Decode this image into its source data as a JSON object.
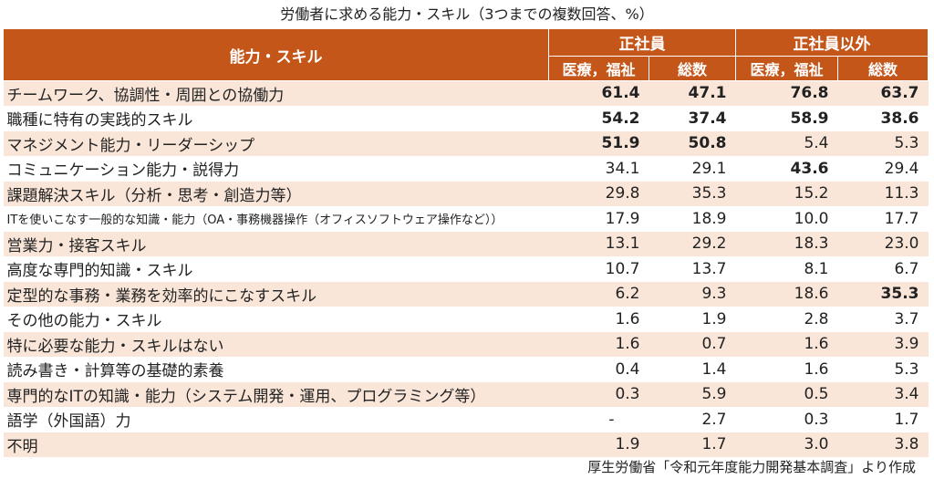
{
  "title": "労働者に求める能力・スキル（3つまでの複数回答、%）",
  "header": {
    "skill": "能力・スキル",
    "group1": "正社員",
    "group2": "正社員以外",
    "sub": [
      "医療，福祉",
      "総数",
      "医療，福祉",
      "総数"
    ]
  },
  "rows": [
    {
      "label": "チームワーク、協調性・周囲との協働力",
      "values": [
        "61.4",
        "47.1",
        "76.8",
        "63.7"
      ],
      "bold": [
        true,
        true,
        true,
        true
      ]
    },
    {
      "label": "職種に特有の実践的スキル",
      "values": [
        "54.2",
        "37.4",
        "58.9",
        "38.6"
      ],
      "bold": [
        true,
        true,
        true,
        true
      ]
    },
    {
      "label": "マネジメント能力・リーダーシップ",
      "values": [
        "51.9",
        "50.8",
        "5.4",
        "5.3"
      ],
      "bold": [
        true,
        true,
        false,
        false
      ]
    },
    {
      "label": "コミュニケーション能力・説得力",
      "values": [
        "34.1",
        "29.1",
        "43.6",
        "29.4"
      ],
      "bold": [
        false,
        false,
        true,
        false
      ]
    },
    {
      "label": "課題解決スキル（分析・思考・創造力等）",
      "values": [
        "29.8",
        "35.3",
        "15.2",
        "11.3"
      ],
      "bold": [
        false,
        false,
        false,
        false
      ]
    },
    {
      "label": "ITを使いこなす一般的な知識・能力（OA・事務機器操作（オフィスソフトウェア操作など））",
      "values": [
        "17.9",
        "18.9",
        "10.0",
        "17.7"
      ],
      "bold": [
        false,
        false,
        false,
        false
      ],
      "small": true
    },
    {
      "label": "営業力・接客スキル",
      "values": [
        "13.1",
        "29.2",
        "18.3",
        "23.0"
      ],
      "bold": [
        false,
        false,
        false,
        false
      ]
    },
    {
      "label": "高度な専門的知識・スキル",
      "values": [
        "10.7",
        "13.7",
        "8.1",
        "6.7"
      ],
      "bold": [
        false,
        false,
        false,
        false
      ]
    },
    {
      "label": "定型的な事務・業務を効率的にこなすスキル",
      "values": [
        "6.2",
        "9.3",
        "18.6",
        "35.3"
      ],
      "bold": [
        false,
        false,
        false,
        true
      ]
    },
    {
      "label": "その他の能力・スキル",
      "values": [
        "1.6",
        "1.9",
        "2.8",
        "3.7"
      ],
      "bold": [
        false,
        false,
        false,
        false
      ]
    },
    {
      "label": "特に必要な能力・スキルはない",
      "values": [
        "1.6",
        "0.7",
        "1.6",
        "3.9"
      ],
      "bold": [
        false,
        false,
        false,
        false
      ]
    },
    {
      "label": "読み書き・計算等の基礎的素養",
      "values": [
        "0.4",
        "1.4",
        "1.6",
        "5.3"
      ],
      "bold": [
        false,
        false,
        false,
        false
      ]
    },
    {
      "label": "専門的なITの知識・能力（システム開発・運用、プログラミング等）",
      "values": [
        "0.3",
        "5.9",
        "0.5",
        "3.4"
      ],
      "bold": [
        false,
        false,
        false,
        false
      ]
    },
    {
      "label": "語学（外国語）力",
      "values": [
        "-",
        "2.7",
        "0.3",
        "1.7"
      ],
      "bold": [
        false,
        false,
        false,
        false
      ]
    },
    {
      "label": "不明",
      "values": [
        "1.9",
        "1.7",
        "3.0",
        "3.8"
      ],
      "bold": [
        false,
        false,
        false,
        false
      ]
    }
  ],
  "source": "厚生労働省「令和元年度能力開発基本調査」より作成"
}
